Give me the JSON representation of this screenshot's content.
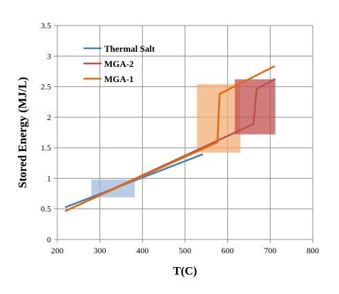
{
  "chart_data": {
    "type": "line",
    "title": "",
    "xlabel": "T(C)",
    "ylabel": "Stored Energy (MJ/L)",
    "xlim": [
      200,
      800
    ],
    "ylim": [
      0,
      3.5
    ],
    "x_ticks": [
      200,
      300,
      400,
      500,
      600,
      700,
      800
    ],
    "y_ticks": [
      0,
      0.5,
      1,
      1.5,
      2,
      2.5,
      3,
      3.5
    ],
    "x_tick_labels": [
      "200",
      "300",
      "400",
      "500",
      "600",
      "700",
      "800"
    ],
    "y_tick_labels": [
      "0",
      "0.5",
      "1",
      "1.5",
      "2",
      "2.5",
      "3",
      "3.5"
    ],
    "grid": true,
    "legend_position": "upper-left",
    "series": [
      {
        "name": "Thermal Salt",
        "color": "#4a7ebb",
        "x": [
          220,
          540
        ],
        "y": [
          0.53,
          1.39
        ]
      },
      {
        "name": "MGA-2",
        "color": "#c0504d",
        "x": [
          220,
          661,
          668,
          710
        ],
        "y": [
          0.47,
          1.89,
          2.46,
          2.62
        ]
      },
      {
        "name": "MGA-1",
        "color": "#e46c0a",
        "x": [
          220,
          576,
          581,
          709
        ],
        "y": [
          0.47,
          1.59,
          2.38,
          2.83
        ]
      }
    ],
    "regions": [
      {
        "color": "#9bb7db",
        "opacity": 0.7,
        "x": [
          280,
          382
        ],
        "y": [
          0.69,
          0.98
        ]
      },
      {
        "color": "#f2a96e",
        "opacity": 0.7,
        "x": [
          528,
          630
        ],
        "y": [
          1.42,
          2.54
        ]
      },
      {
        "color": "#c0504d",
        "opacity": 0.75,
        "x": [
          617,
          712
        ],
        "y": [
          1.72,
          2.62
        ]
      }
    ]
  }
}
